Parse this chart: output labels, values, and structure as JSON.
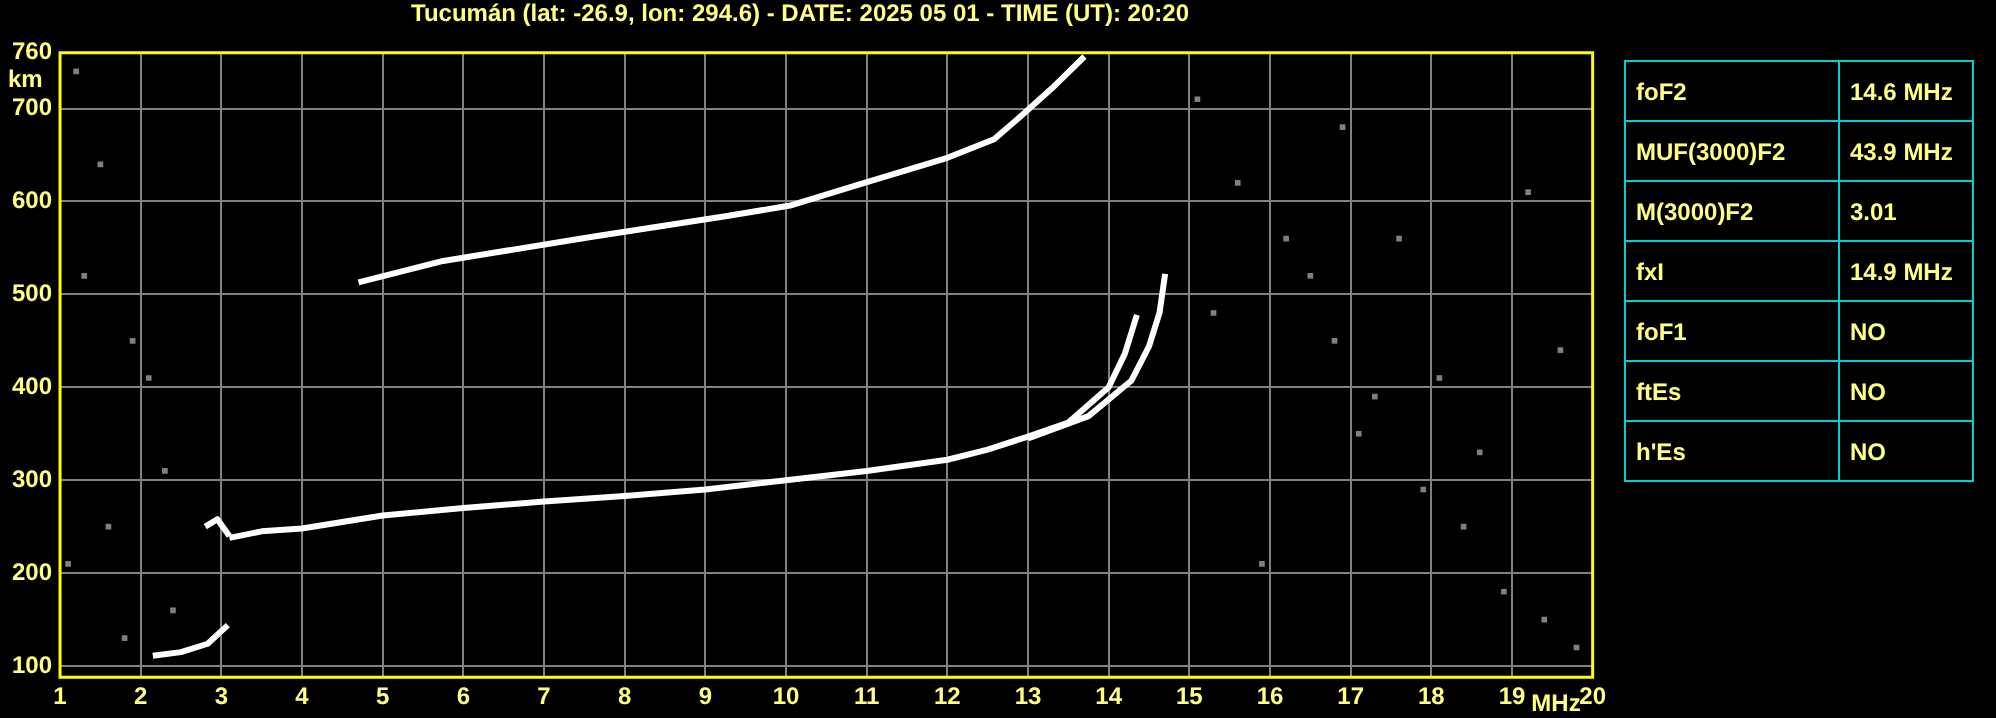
{
  "chart_data": [
    {
      "type": "line",
      "title": "Tucumán (lat: -26.9, lon: 294.6) - DATE: 2025 05 01 - TIME (UT): 20:20",
      "xlabel": "MHz",
      "ylabel": "km",
      "xlim": [
        1,
        20
      ],
      "xticks": [
        1,
        2,
        3,
        4,
        5,
        6,
        7,
        8,
        9,
        10,
        11,
        12,
        13,
        14,
        15,
        16,
        17,
        18,
        19,
        20
      ],
      "ylim": [
        88,
        760
      ],
      "yticks": [
        100,
        200,
        300,
        400,
        500,
        600,
        700,
        760
      ],
      "grid": true,
      "legend": false,
      "marker": "none",
      "series": [
        {
          "color": "#ffffff",
          "x": [
            3.1,
            3.5,
            4,
            5,
            6,
            7,
            8,
            9,
            10,
            11,
            12,
            12.5,
            13,
            13.5,
            14,
            14.2,
            14.35
          ],
          "values": [
            238,
            245,
            248,
            262,
            270,
            277,
            283,
            290,
            300,
            310,
            322,
            333,
            347,
            362,
            400,
            436,
            478
          ]
        },
        {
          "color": "#ffffff",
          "x": [
            13,
            13.75,
            14.28,
            14.5,
            14.63,
            14.7
          ],
          "values": [
            345,
            369,
            407,
            444,
            480,
            522
          ]
        },
        {
          "color": "#ffffff",
          "x": [
            4.7,
            5.75,
            7.6,
            9.25,
            10.07,
            10.9,
            12,
            12.58,
            12.9,
            13.3,
            13.7
          ],
          "values": [
            513,
            536,
            562,
            584,
            596,
            618,
            647,
            667,
            691,
            722,
            756
          ]
        },
        {
          "color": "#ffffff",
          "x": [
            2.15,
            2.5,
            2.83,
            3.08
          ],
          "values": [
            111,
            115,
            124,
            144
          ]
        },
        {
          "color": "#ffffff",
          "x": [
            2.8,
            2.95,
            3.1
          ],
          "values": [
            250,
            258,
            240
          ]
        },
        {
          "type": "scatter",
          "marker": "square",
          "color": "#808080",
          "x": [
            1.2,
            1.5,
            1.3,
            1.9,
            2.1,
            2.3,
            1.6,
            1.1,
            2.4,
            1.8,
            15.1,
            15.6,
            16.2,
            16.8,
            17.3,
            17.9,
            18.4,
            18.9,
            19.4,
            19.8,
            15.3,
            16.5,
            17.1,
            18.1,
            19.2,
            15.9,
            16.9,
            18.6,
            19.6,
            17.6
          ],
          "values": [
            740,
            640,
            520,
            450,
            410,
            310,
            250,
            210,
            160,
            130,
            710,
            620,
            560,
            450,
            390,
            290,
            250,
            180,
            150,
            120,
            480,
            520,
            350,
            410,
            610,
            210,
            680,
            330,
            440,
            560
          ]
        }
      ]
    },
    {
      "type": "other",
      "annotations": [
        "foF2",
        "14.6 MHz",
        "MUF(3000)F2",
        "43.9 MHz",
        "M(3000)F2",
        "3.01",
        "fxI",
        "14.9 MHz",
        "foF1",
        "NO",
        "ftEs",
        "NO",
        "h'Es",
        "NO"
      ]
    }
  ]
}
